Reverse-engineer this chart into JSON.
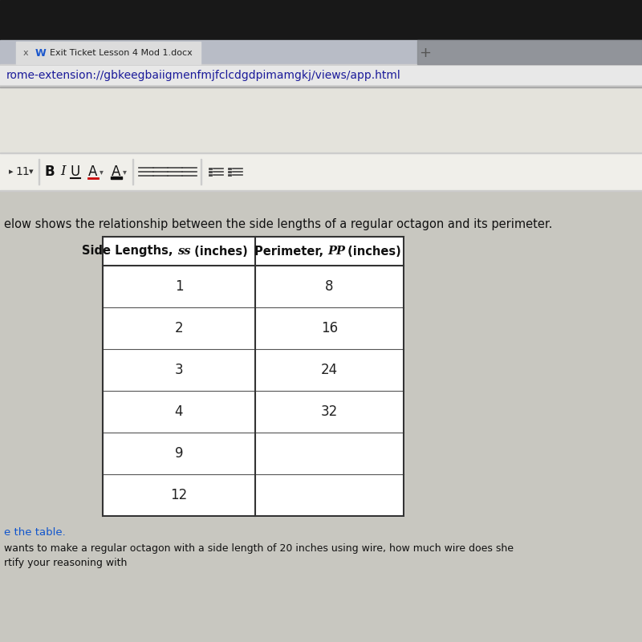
{
  "bg_very_top": "#1a1818",
  "bg_tab_bar": "#b8bcc6",
  "tab_bg": "#d8d8d8",
  "tab_text": "Exit Ticket Lesson 4 Mod 1.docx",
  "url_bar_bg": "#d4d4d4",
  "url_inner_bg": "#efefef",
  "url_text": "rome-extension://gbkeegbaiigmenfmjfclcdgdpimamgkj/views/app.html",
  "blank_area_bg": "#e4e3dc",
  "toolbar_bg": "#f0efea",
  "content_bg": "#c8c7c0",
  "description_text": "elow shows the relationship between the side lengths of a regular octagon and its perimeter.",
  "col1_header_pre": "Side Lengths, ",
  "col1_header_italic": "ss",
  "col1_header_post": " (inches)",
  "col2_header_pre": "Perimeter, ",
  "col2_header_italic": "PP",
  "col2_header_post": " (inches)",
  "rows": [
    [
      "1",
      "8"
    ],
    [
      "2",
      "16"
    ],
    [
      "3",
      "24"
    ],
    [
      "4",
      "32"
    ],
    [
      "9",
      ""
    ],
    [
      "12",
      ""
    ]
  ],
  "footer_text": "e the table.",
  "footer2_text": "wants to make a regular octagon with a side length of 20 inches using wire, how much wire does she",
  "footer3_text": "rtify your reasoning with"
}
